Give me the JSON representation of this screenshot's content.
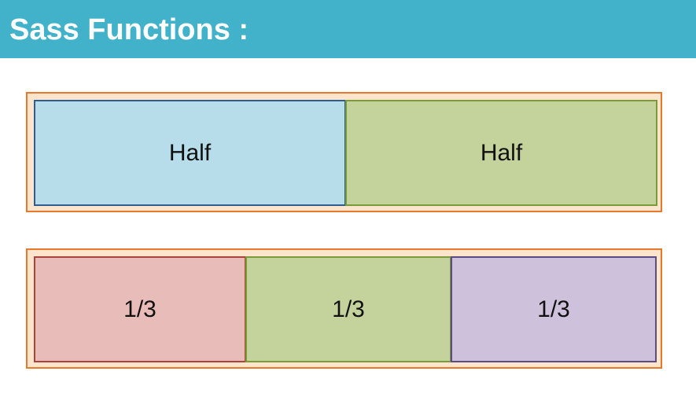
{
  "title": "Sass Functions :",
  "colors": {
    "title_bar": "#41b2c9",
    "container_border": "#e8782a",
    "container_fill": "#fde4cd",
    "blue_cell": "#b7dcea",
    "green_cell": "#c4d29b",
    "red_cell": "#e8bdb9",
    "purple_cell": "#cdc1dc"
  },
  "rows": {
    "halves": [
      "Half",
      "Half"
    ],
    "thirds": [
      "1/3",
      "1/3",
      "1/3"
    ]
  }
}
